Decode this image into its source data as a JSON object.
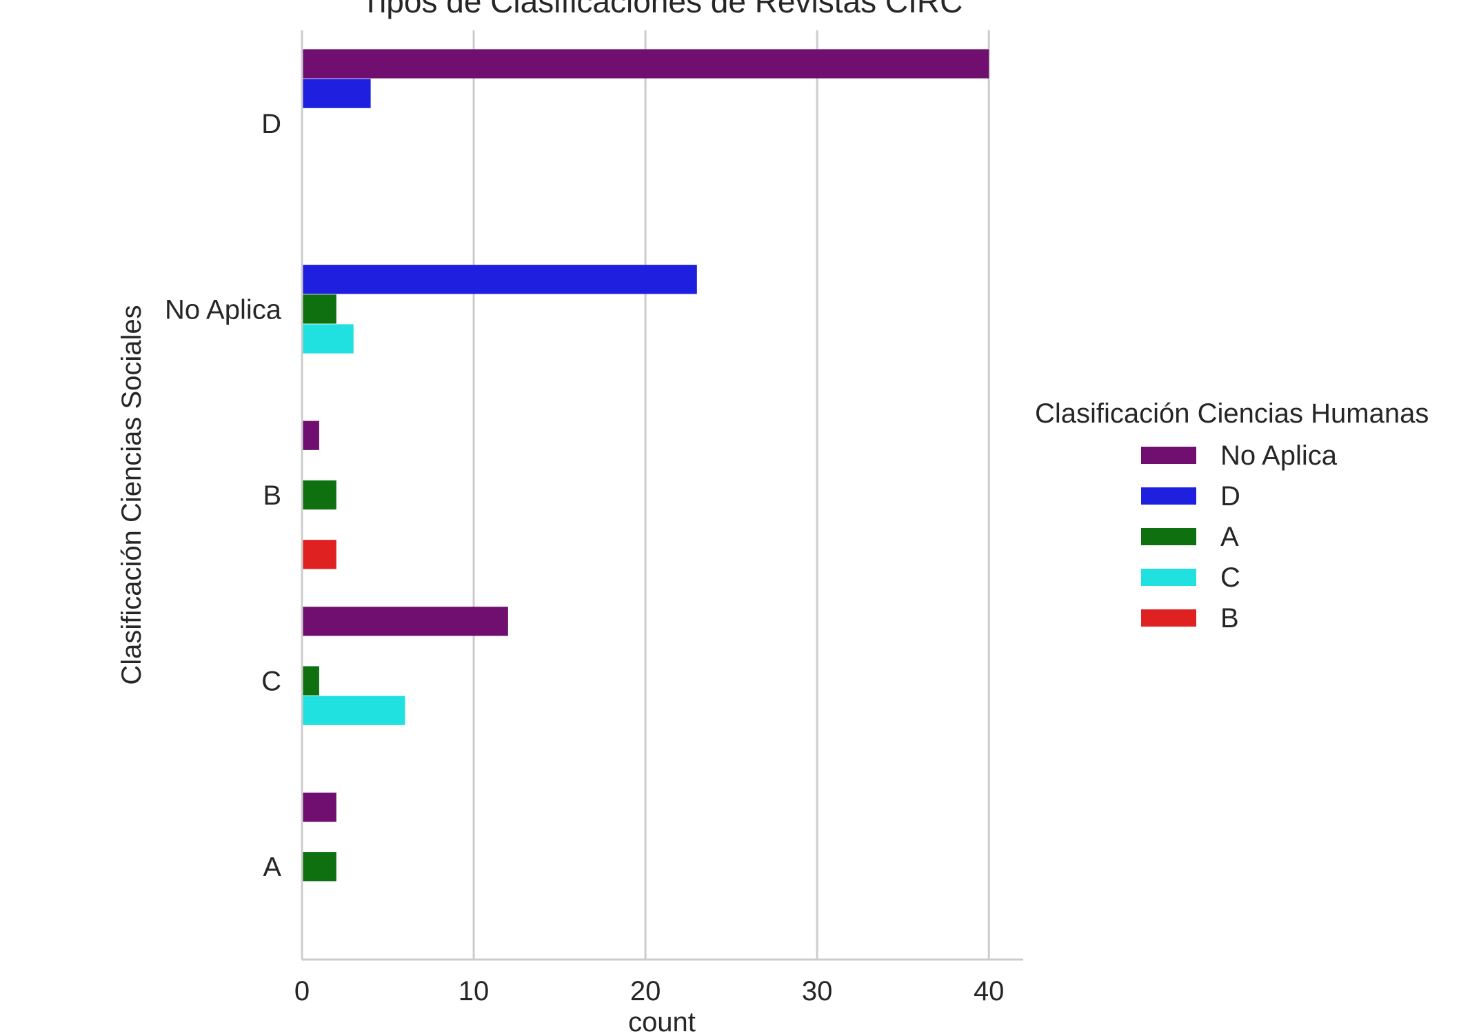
{
  "chart_data": {
    "type": "bar",
    "orientation": "horizontal",
    "title": "Tipos de Clasificaciones de Revistas CIRC",
    "xlabel": "count",
    "ylabel": "Clasificación Ciencias Sociales",
    "categories": [
      "D",
      "No Aplica",
      "B",
      "C",
      "A"
    ],
    "xlim": [
      0,
      42
    ],
    "xticks": [
      "0",
      "10",
      "20",
      "30",
      "40"
    ],
    "grid": "vertical",
    "legend": {
      "title": "Clasificación Ciencias Humanas",
      "position": "right"
    },
    "series": [
      {
        "name": "No Aplica",
        "color": "#700f70",
        "values": [
          40,
          0,
          1,
          12,
          2
        ]
      },
      {
        "name": "D",
        "color": "#1f1fe0",
        "values": [
          4,
          23,
          0,
          0,
          0
        ]
      },
      {
        "name": "A",
        "color": "#0f700f",
        "values": [
          0,
          2,
          2,
          1,
          2
        ]
      },
      {
        "name": "C",
        "color": "#21e0e0",
        "values": [
          0,
          3,
          0,
          6,
          0
        ]
      },
      {
        "name": "B",
        "color": "#e02121",
        "values": [
          0,
          0,
          2,
          0,
          0
        ]
      }
    ]
  }
}
